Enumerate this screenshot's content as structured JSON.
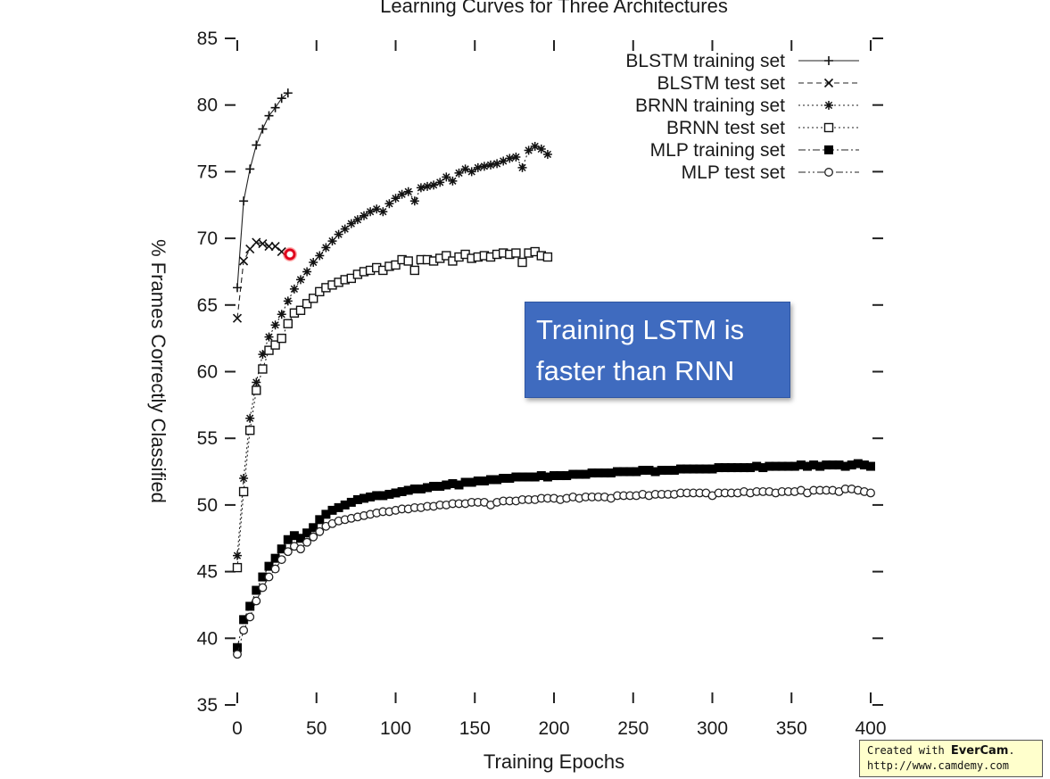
{
  "chart_data": {
    "type": "line",
    "title": "Learning Curves for Three Architectures",
    "xlabel": "Training Epochs",
    "ylabel": "% Frames Correctly Classified",
    "xlim": [
      0,
      400
    ],
    "ylim": [
      35,
      85
    ],
    "x_ticks": [
      0,
      50,
      100,
      150,
      200,
      250,
      300,
      350,
      400
    ],
    "y_ticks": [
      35,
      40,
      45,
      50,
      55,
      60,
      65,
      70,
      75,
      80,
      85
    ],
    "grid": false,
    "legend_position": "top-right",
    "series": [
      {
        "name": "BLSTM training set",
        "marker": "plus",
        "line": "solid",
        "x": [
          0,
          4,
          8,
          12,
          16,
          20,
          24,
          28,
          32
        ],
        "y": [
          66.3,
          72.8,
          75.2,
          77.0,
          78.2,
          79.2,
          79.8,
          80.5,
          80.9
        ]
      },
      {
        "name": "BLSTM test set",
        "marker": "x",
        "line": "dashed",
        "x": [
          0,
          4,
          8,
          12,
          16,
          20,
          24,
          28
        ],
        "y": [
          64.0,
          68.3,
          69.2,
          69.7,
          69.6,
          69.4,
          69.4,
          69.0
        ]
      },
      {
        "name": "BRNN training set",
        "marker": "star",
        "line": "dotted",
        "x": [
          0,
          4,
          8,
          12,
          16,
          20,
          24,
          28,
          32,
          36,
          40,
          44,
          48,
          52,
          56,
          60,
          64,
          68,
          72,
          76,
          80,
          84,
          88,
          92,
          96,
          100,
          104,
          108,
          112,
          116,
          120,
          124,
          128,
          132,
          136,
          140,
          144,
          148,
          152,
          156,
          160,
          164,
          168,
          172,
          176,
          180,
          184,
          188,
          192,
          196
        ],
        "y": [
          46.2,
          52.0,
          56.5,
          59.2,
          61.3,
          62.6,
          63.5,
          64.3,
          65.3,
          66.2,
          66.9,
          67.5,
          68.2,
          68.7,
          69.3,
          69.8,
          70.3,
          70.7,
          71.1,
          71.4,
          71.7,
          72.0,
          72.2,
          72.0,
          72.6,
          73.0,
          73.3,
          73.5,
          72.8,
          73.8,
          73.9,
          74.0,
          74.2,
          74.6,
          74.3,
          74.9,
          75.2,
          75.0,
          75.3,
          75.4,
          75.5,
          75.6,
          75.8,
          76.0,
          76.1,
          75.3,
          76.6,
          76.9,
          76.7,
          76.3
        ]
      },
      {
        "name": "BRNN test set",
        "marker": "open-square",
        "line": "dotted",
        "x": [
          0,
          4,
          8,
          12,
          16,
          20,
          24,
          28,
          32,
          36,
          40,
          44,
          48,
          52,
          56,
          60,
          64,
          68,
          72,
          76,
          80,
          84,
          88,
          92,
          96,
          100,
          104,
          108,
          112,
          116,
          120,
          124,
          128,
          132,
          136,
          140,
          144,
          148,
          152,
          156,
          160,
          164,
          168,
          172,
          176,
          180,
          184,
          188,
          192,
          196
        ],
        "y": [
          45.3,
          51.0,
          55.6,
          58.6,
          60.2,
          61.6,
          62.0,
          62.5,
          63.6,
          64.4,
          64.6,
          65.1,
          65.5,
          66.0,
          66.3,
          66.5,
          66.7,
          66.9,
          67.0,
          67.3,
          67.5,
          67.6,
          67.8,
          67.6,
          67.9,
          68.0,
          68.4,
          68.3,
          67.6,
          68.4,
          68.4,
          68.3,
          68.5,
          68.7,
          68.3,
          68.6,
          68.8,
          68.5,
          68.6,
          68.7,
          68.6,
          68.8,
          68.9,
          68.8,
          68.9,
          68.2,
          68.9,
          69.0,
          68.7,
          68.6
        ]
      },
      {
        "name": "MLP training set",
        "marker": "filled-square",
        "line": "dash-dot",
        "x": [
          0,
          4,
          8,
          12,
          16,
          20,
          24,
          28,
          32,
          36,
          40,
          44,
          48,
          52,
          56,
          60,
          64,
          68,
          72,
          76,
          80,
          84,
          88,
          92,
          96,
          100,
          104,
          108,
          112,
          116,
          120,
          124,
          128,
          132,
          136,
          140,
          144,
          148,
          152,
          156,
          160,
          164,
          168,
          172,
          176,
          180,
          184,
          188,
          192,
          196,
          200,
          204,
          208,
          212,
          216,
          220,
          224,
          228,
          232,
          236,
          240,
          244,
          248,
          252,
          256,
          260,
          264,
          268,
          272,
          276,
          280,
          284,
          288,
          292,
          296,
          300,
          304,
          308,
          312,
          316,
          320,
          324,
          328,
          332,
          336,
          340,
          344,
          348,
          352,
          356,
          360,
          364,
          368,
          372,
          376,
          380,
          384,
          388,
          392,
          396,
          400
        ],
        "y": [
          39.3,
          41.4,
          42.4,
          43.6,
          44.6,
          45.4,
          46.0,
          46.7,
          47.4,
          47.7,
          47.5,
          47.9,
          48.3,
          48.9,
          49.3,
          49.6,
          49.8,
          50.0,
          50.2,
          50.4,
          50.5,
          50.6,
          50.7,
          50.7,
          50.8,
          50.9,
          51.0,
          51.1,
          51.2,
          51.2,
          51.3,
          51.4,
          51.4,
          51.5,
          51.6,
          51.5,
          51.7,
          51.7,
          51.8,
          51.8,
          51.9,
          51.9,
          52.0,
          52.0,
          52.1,
          52.1,
          52.1,
          52.1,
          52.2,
          52.1,
          52.2,
          52.2,
          52.2,
          52.3,
          52.3,
          52.3,
          52.4,
          52.4,
          52.4,
          52.4,
          52.5,
          52.5,
          52.5,
          52.5,
          52.6,
          52.6,
          52.5,
          52.6,
          52.6,
          52.6,
          52.7,
          52.7,
          52.7,
          52.7,
          52.7,
          52.7,
          52.8,
          52.8,
          52.8,
          52.8,
          52.8,
          52.8,
          52.9,
          52.8,
          52.9,
          52.9,
          52.9,
          52.9,
          52.9,
          53.0,
          52.9,
          53.0,
          52.9,
          53.0,
          53.0,
          53.0,
          52.9,
          53.0,
          53.1,
          53.0,
          52.9
        ]
      },
      {
        "name": "MLP test set",
        "marker": "open-circle",
        "line": "dash-dot-dot",
        "x": [
          0,
          4,
          8,
          12,
          16,
          20,
          24,
          28,
          32,
          36,
          40,
          44,
          48,
          52,
          56,
          60,
          64,
          68,
          72,
          76,
          80,
          84,
          88,
          92,
          96,
          100,
          104,
          108,
          112,
          116,
          120,
          124,
          128,
          132,
          136,
          140,
          144,
          148,
          152,
          156,
          160,
          164,
          168,
          172,
          176,
          180,
          184,
          188,
          192,
          196,
          200,
          204,
          208,
          212,
          216,
          220,
          224,
          228,
          232,
          236,
          240,
          244,
          248,
          252,
          256,
          260,
          264,
          268,
          272,
          276,
          280,
          284,
          288,
          292,
          296,
          300,
          304,
          308,
          312,
          316,
          320,
          324,
          328,
          332,
          336,
          340,
          344,
          348,
          352,
          356,
          360,
          364,
          368,
          372,
          376,
          380,
          384,
          388,
          392,
          396,
          400
        ],
        "y": [
          38.8,
          40.6,
          41.6,
          42.8,
          43.8,
          44.6,
          45.2,
          45.9,
          46.5,
          46.9,
          46.7,
          47.2,
          47.6,
          48.0,
          48.4,
          48.6,
          48.8,
          48.9,
          49.0,
          49.1,
          49.2,
          49.3,
          49.4,
          49.5,
          49.5,
          49.6,
          49.7,
          49.7,
          49.8,
          49.8,
          49.9,
          49.9,
          50.0,
          50.0,
          50.1,
          50.1,
          50.1,
          50.2,
          50.2,
          50.2,
          50.0,
          50.2,
          50.3,
          50.3,
          50.3,
          50.4,
          50.4,
          50.4,
          50.5,
          50.5,
          50.5,
          50.4,
          50.5,
          50.6,
          50.5,
          50.6,
          50.6,
          50.6,
          50.6,
          50.5,
          50.7,
          50.7,
          50.7,
          50.7,
          50.8,
          50.7,
          50.8,
          50.8,
          50.8,
          50.8,
          50.9,
          50.9,
          50.9,
          50.9,
          50.9,
          50.7,
          50.9,
          50.9,
          50.9,
          50.9,
          51.0,
          50.9,
          51.0,
          51.0,
          51.0,
          50.9,
          51.0,
          51.0,
          51.0,
          51.1,
          50.9,
          51.1,
          51.1,
          51.1,
          51.1,
          51.0,
          51.2,
          51.2,
          51.1,
          51.0,
          50.9
        ]
      }
    ]
  },
  "callout": {
    "line1": "Training LSTM is",
    "line2": "faster than RNN"
  },
  "watermark": {
    "prefix": "Created with ",
    "brand": "EverCam",
    "suffix": ".",
    "url": "http://www.camdemy.com"
  }
}
